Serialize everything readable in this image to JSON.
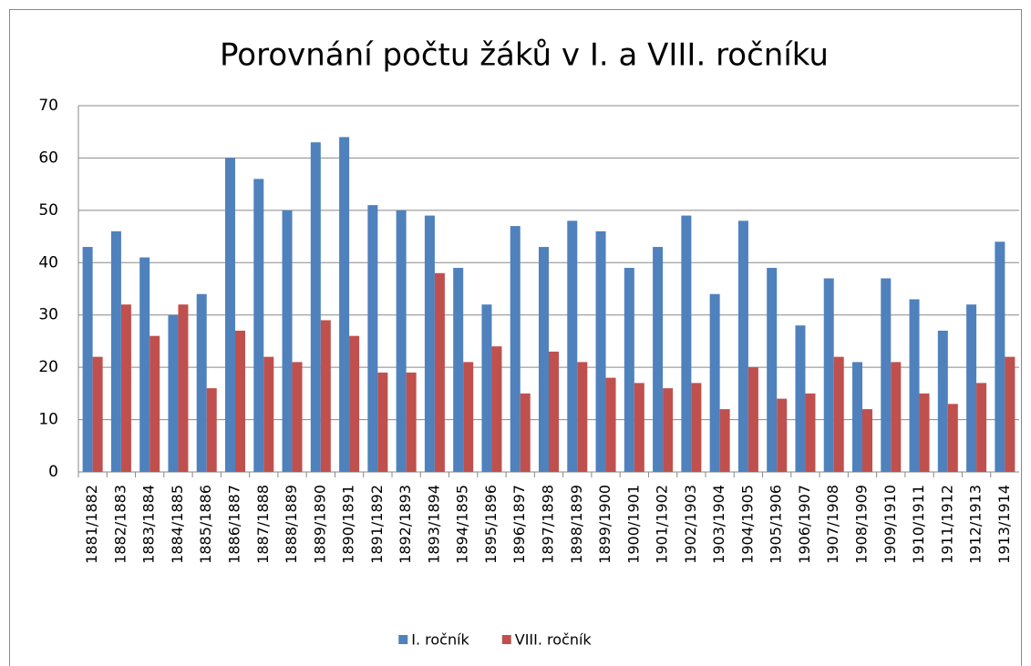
{
  "chart_data": {
    "type": "bar",
    "title": "Porovnání počtu žáků v I. a VIII. ročníku",
    "categories": [
      "1881/1882",
      "1882/1883",
      "1883/1884",
      "1884/1885",
      "1885/1886",
      "1886/1887",
      "1887/1888",
      "1888/1889",
      "1889/1890",
      "1890/1891",
      "1891/1892",
      "1892/1893",
      "1893/1894",
      "1894/1895",
      "1895/1896",
      "1896/1897",
      "1897/1898",
      "1898/1899",
      "1899/1900",
      "1900/1901",
      "1901/1902",
      "1902/1903",
      "1903/1904",
      "1904/1905",
      "1905/1906",
      "1906/1907",
      "1907/1908",
      "1908/1909",
      "1909/1910",
      "1910/1911",
      "1911/1912",
      "1912/1913",
      "1913/1914"
    ],
    "series": [
      {
        "name": "I. ročník",
        "color": "#4f81bd",
        "values": [
          43,
          46,
          41,
          30,
          34,
          60,
          56,
          50,
          63,
          64,
          51,
          50,
          49,
          39,
          32,
          47,
          43,
          48,
          46,
          39,
          43,
          49,
          34,
          48,
          39,
          28,
          37,
          21,
          37,
          33,
          27,
          32,
          44
        ]
      },
      {
        "name": "VIII. ročník",
        "color": "#c0504d",
        "values": [
          22,
          32,
          26,
          32,
          16,
          27,
          22,
          21,
          29,
          26,
          19,
          19,
          38,
          21,
          24,
          15,
          23,
          21,
          18,
          17,
          16,
          17,
          12,
          20,
          14,
          15,
          22,
          12,
          21,
          15,
          13,
          17,
          22
        ]
      }
    ],
    "ylim": [
      0,
      70
    ],
    "yticks": [
      0,
      10,
      20,
      30,
      40,
      50,
      60,
      70
    ],
    "grid": true,
    "legend": "bottom"
  }
}
